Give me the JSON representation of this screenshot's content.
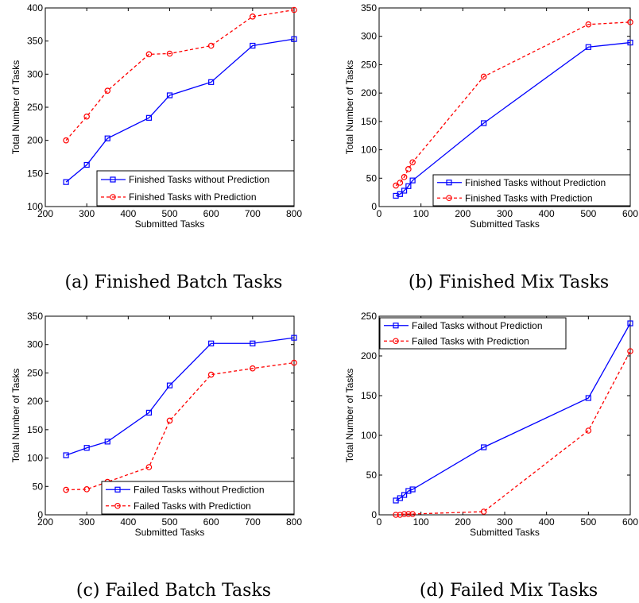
{
  "chart_data": [
    {
      "type": "line",
      "caption": "(a) Finished Batch Tasks",
      "xlabel": "Submitted Tasks",
      "ylabel": "Total Number of Tasks",
      "xlim": [
        200,
        800
      ],
      "ylim": [
        100,
        400
      ],
      "xticks": [
        200,
        300,
        400,
        500,
        600,
        700,
        800
      ],
      "yticks": [
        100,
        150,
        200,
        250,
        300,
        350,
        400
      ],
      "legend_position": "bottom-right",
      "series": [
        {
          "name": "Finished Tasks without Prediction",
          "color": "#0000ff",
          "line": "solid",
          "marker": "square",
          "x": [
            250,
            300,
            350,
            450,
            500,
            600,
            700,
            800
          ],
          "y": [
            137,
            163,
            203,
            234,
            268,
            288,
            343,
            353
          ]
        },
        {
          "name": "Finished Tasks with Prediction",
          "color": "#ff0000",
          "line": "dashed",
          "marker": "circle",
          "x": [
            250,
            300,
            350,
            450,
            500,
            600,
            700,
            800
          ],
          "y": [
            200,
            236,
            275,
            330,
            331,
            343,
            387,
            397
          ]
        }
      ]
    },
    {
      "type": "line",
      "caption": "(b) Finished Mix Tasks",
      "xlabel": "Submitted Tasks",
      "ylabel": "Total Number of Tasks",
      "xlim": [
        0,
        600
      ],
      "ylim": [
        0,
        350
      ],
      "xticks": [
        0,
        100,
        200,
        300,
        400,
        500,
        600
      ],
      "yticks": [
        0,
        50,
        100,
        150,
        200,
        250,
        300,
        350
      ],
      "legend_position": "bottom-right",
      "series": [
        {
          "name": "Finished Tasks without Prediction",
          "color": "#0000ff",
          "line": "solid",
          "marker": "square",
          "x": [
            40,
            50,
            60,
            70,
            80,
            250,
            500,
            600
          ],
          "y": [
            19,
            22,
            28,
            36,
            46,
            147,
            281,
            289
          ]
        },
        {
          "name": "Finished Tasks with Prediction",
          "color": "#ff0000",
          "line": "dashed",
          "marker": "circle",
          "x": [
            40,
            50,
            60,
            70,
            80,
            250,
            500,
            600
          ],
          "y": [
            37,
            42,
            52,
            66,
            78,
            229,
            321,
            325
          ]
        }
      ]
    },
    {
      "type": "line",
      "caption": "(c) Failed Batch Tasks",
      "xlabel": "Submitted Tasks",
      "ylabel": "Total Number of Tasks",
      "xlim": [
        200,
        800
      ],
      "ylim": [
        0,
        350
      ],
      "xticks": [
        200,
        300,
        400,
        500,
        600,
        700,
        800
      ],
      "yticks": [
        0,
        50,
        100,
        150,
        200,
        250,
        300,
        350
      ],
      "legend_position": "bottom-right",
      "series": [
        {
          "name": "Failed Tasks without Prediction",
          "color": "#0000ff",
          "line": "solid",
          "marker": "square",
          "x": [
            250,
            300,
            350,
            450,
            500,
            600,
            700,
            800
          ],
          "y": [
            105,
            118,
            129,
            180,
            228,
            302,
            302,
            312
          ]
        },
        {
          "name": "Failed Tasks with Prediction",
          "color": "#ff0000",
          "line": "dashed",
          "marker": "circle",
          "x": [
            250,
            300,
            350,
            450,
            500,
            600,
            700,
            800
          ],
          "y": [
            44,
            45,
            58,
            84,
            166,
            247,
            258,
            268
          ]
        }
      ]
    },
    {
      "type": "line",
      "caption": "(d) Failed Mix Tasks",
      "xlabel": "Submitted Tasks",
      "ylabel": "Total Number of Tasks",
      "xlim": [
        0,
        600
      ],
      "ylim": [
        0,
        250
      ],
      "xticks": [
        0,
        100,
        200,
        300,
        400,
        500,
        600
      ],
      "yticks": [
        0,
        50,
        100,
        150,
        200,
        250
      ],
      "legend_position": "top-left",
      "series": [
        {
          "name": "Failed Tasks without Prediction",
          "color": "#0000ff",
          "line": "solid",
          "marker": "square",
          "x": [
            40,
            50,
            60,
            70,
            80,
            250,
            500,
            600
          ],
          "y": [
            18,
            21,
            25,
            30,
            32,
            85,
            147,
            241
          ]
        },
        {
          "name": "Failed Tasks with Prediction",
          "color": "#ff0000",
          "line": "dashed",
          "marker": "circle",
          "x": [
            40,
            50,
            60,
            70,
            80,
            250,
            500,
            600
          ],
          "y": [
            0,
            0,
            1,
            1,
            1,
            4,
            106,
            206
          ]
        }
      ]
    }
  ]
}
